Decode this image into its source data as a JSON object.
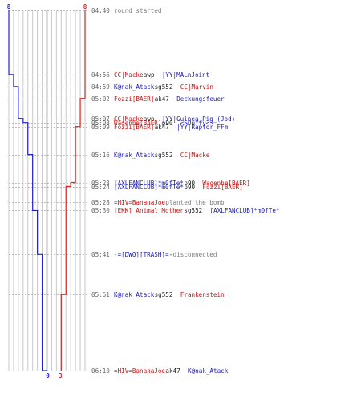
{
  "chart_data": {
    "type": "line",
    "title": "",
    "xlabel": "",
    "ylabel": "",
    "time_range": [
      "04:40",
      "06:10"
    ],
    "colors": {
      "blue_team": "#2222cc",
      "red_team": "#dd2222",
      "gridline": "#c8c8c8",
      "center_line": "#888888"
    },
    "series": [
      {
        "name": "",
        "team": "blue",
        "start_label": "8",
        "end_label": "0",
        "steps": [
          {
            "time": "04:40",
            "alive": 8
          },
          {
            "time": "04:56",
            "alive": 7
          },
          {
            "time": "04:59",
            "alive": 6
          },
          {
            "time": "05:07",
            "alive": 5
          },
          {
            "time": "05:08",
            "alive": 4
          },
          {
            "time": "05:16",
            "alive": 3
          },
          {
            "time": "05:30",
            "alive": 2
          },
          {
            "time": "05:41",
            "alive": 1
          },
          {
            "time": "06:10",
            "alive": 0
          }
        ]
      },
      {
        "name": "",
        "team": "red",
        "start_label": "8",
        "end_label": "3",
        "steps": [
          {
            "time": "04:40",
            "alive": 8
          },
          {
            "time": "05:02",
            "alive": 7
          },
          {
            "time": "05:09",
            "alive": 6
          },
          {
            "time": "05:23",
            "alive": 5
          },
          {
            "time": "05:24",
            "alive": 4
          },
          {
            "time": "05:51",
            "alive": 3
          }
        ]
      }
    ],
    "events": [
      {
        "time": "04:40",
        "parts": [
          {
            "text": "round started",
            "color": "grey"
          }
        ]
      },
      {
        "time": "04:56",
        "parts": [
          {
            "text": "CC|Macke",
            "color": "red"
          },
          {
            "text": " awp ",
            "color": "black"
          },
          {
            "text": "|YY|MALnJoint",
            "color": "blue"
          }
        ]
      },
      {
        "time": "04:59",
        "parts": [
          {
            "text": "K@nak_Atack",
            "color": "blue"
          },
          {
            "text": " sg552 ",
            "color": "black"
          },
          {
            "text": "CC|Marvin",
            "color": "red"
          }
        ]
      },
      {
        "time": "05:02",
        "parts": [
          {
            "text": "Fozzi[BAER]",
            "color": "red"
          },
          {
            "text": " ak47 ",
            "color": "black"
          },
          {
            "text": "Deckungsfeuer",
            "color": "blue"
          }
        ]
      },
      {
        "time": "05:07",
        "parts": [
          {
            "text": "CC|Macke",
            "color": "red"
          },
          {
            "text": " awp ",
            "color": "black"
          },
          {
            "text": "|YY|Guinea_Pig_(Jod)",
            "color": "blue"
          }
        ]
      },
      {
        "time": "05:08",
        "parts": [
          {
            "text": "Wagenhe[BAER]",
            "color": "red"
          },
          {
            "text": " p90 ",
            "color": "black"
          },
          {
            "text": "<>Duffy<>",
            "color": "blue"
          }
        ]
      },
      {
        "time": "05:09",
        "parts": [
          {
            "text": "Fozzi[BAER]",
            "color": "red"
          },
          {
            "text": " ak47 ",
            "color": "black"
          },
          {
            "text": "|YY|Raptor_FFm",
            "color": "blue"
          }
        ]
      },
      {
        "time": "05:16",
        "parts": [
          {
            "text": "K@nak_Atack",
            "color": "blue"
          },
          {
            "text": " sg552 ",
            "color": "black"
          },
          {
            "text": "CC|Macke",
            "color": "red"
          }
        ]
      },
      {
        "time": "05:23",
        "parts": [
          {
            "text": "[AXLFANCLUB]*m0fTe*",
            "color": "blue"
          },
          {
            "text": " p90 ",
            "color": "black"
          },
          {
            "text": "Wagenhe[BAER]",
            "color": "red"
          }
        ]
      },
      {
        "time": "05:24",
        "parts": [
          {
            "text": "[AXLFANCLUB]*m0fTe*",
            "color": "blue"
          },
          {
            "text": " p90 ",
            "color": "black"
          },
          {
            "text": "Fozzi[BAER]",
            "color": "red"
          }
        ]
      },
      {
        "time": "05:28",
        "parts": [
          {
            "text": "=HIV=BananaJoe",
            "color": "red"
          },
          {
            "text": " planted the bomb",
            "color": "grey"
          }
        ]
      },
      {
        "time": "05:30",
        "parts": [
          {
            "text": "[EKK] Animal Mother",
            "color": "red"
          },
          {
            "text": " sg552 ",
            "color": "black"
          },
          {
            "text": "[AXLFANCLUB]*m0fTe*",
            "color": "blue"
          }
        ]
      },
      {
        "time": "05:41",
        "parts": [
          {
            "text": "-=[DWQ][TRASH]=-",
            "color": "blue"
          },
          {
            "text": " disconnected",
            "color": "grey"
          }
        ]
      },
      {
        "time": "05:51",
        "parts": [
          {
            "text": "K@nak_Atack",
            "color": "blue"
          },
          {
            "text": " sg552 ",
            "color": "black"
          },
          {
            "text": "Frankenstein",
            "color": "red"
          }
        ]
      },
      {
        "time": "06:10",
        "parts": [
          {
            "text": "=HIV=BananaJoe",
            "color": "red"
          },
          {
            "text": " ak47 ",
            "color": "black"
          },
          {
            "text": "K@nak_Atack",
            "color": "blue"
          }
        ]
      }
    ]
  }
}
